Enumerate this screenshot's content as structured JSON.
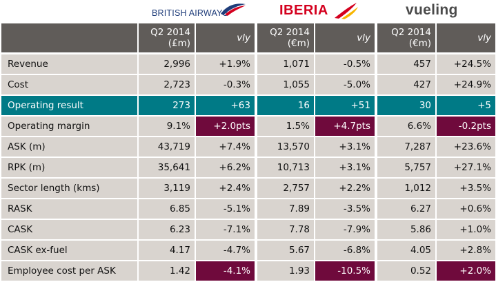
{
  "logos": {
    "ba": {
      "text": "BRITISH AIRWAYS",
      "color": "#1f3d7a",
      "accent": "#d4001e"
    },
    "iberia": {
      "text": "IBERIA",
      "color": "#d4001e",
      "accent": "#f7b500"
    },
    "vueling": {
      "text": "vueling",
      "color": "#4a4a4a",
      "accent": "#f7c600"
    }
  },
  "header": {
    "period_lines": [
      "Q2 2014",
      "(£m)",
      "(€m)"
    ],
    "airlines": [
      {
        "period": "Q2 2014",
        "unit": "(£m)",
        "vly": "vly"
      },
      {
        "period": "Q2 2014",
        "unit": "(€m)",
        "vly": "vly"
      },
      {
        "period": "Q2 2014",
        "unit": "(€m)",
        "vly": "vly"
      }
    ]
  },
  "colors": {
    "header_bg": "#605c59",
    "cell_bg": "#d9d4cf",
    "highlight_row": "#007a86",
    "highlight_cell": "#6f0a3c"
  },
  "rows": [
    {
      "label": "Revenue",
      "values": [
        "2,996",
        "+1.9%",
        "1,071",
        "-0.5%",
        "457",
        "+24.5%"
      ],
      "style": "normal"
    },
    {
      "label": "Cost",
      "values": [
        "2,723",
        "-0.3%",
        "1,055",
        "-5.0%",
        "427",
        "+24.9%"
      ],
      "style": "normal"
    },
    {
      "label": "Operating result",
      "values": [
        "273",
        "+63",
        "16",
        "+51",
        "30",
        "+5"
      ],
      "style": "teal"
    },
    {
      "label": "Operating margin",
      "values": [
        "9.1%",
        "+2.0pts",
        "1.5%",
        "+4.7pts",
        "6.6%",
        "-0.2pts"
      ],
      "style": "plum"
    },
    {
      "label": "ASK (m)",
      "values": [
        "43,719",
        "+7.4%",
        "13,570",
        "+3.1%",
        "7,287",
        "+23.6%"
      ],
      "style": "normal"
    },
    {
      "label": "RPK (m)",
      "values": [
        "35,641",
        "+6.2%",
        "10,713",
        "+3.1%",
        "5,757",
        "+27.1%"
      ],
      "style": "normal"
    },
    {
      "label": "Sector length (kms)",
      "values": [
        "3,119",
        "+2.4%",
        "2,757",
        "+2.2%",
        "1,012",
        "+3.5%"
      ],
      "style": "normal"
    },
    {
      "label": "RASK",
      "values": [
        "6.85",
        "-5.1%",
        "7.89",
        "-3.5%",
        "6.27",
        "+0.6%"
      ],
      "style": "normal"
    },
    {
      "label": "CASK",
      "values": [
        "6.23",
        "-7.1%",
        "7.78",
        "-7.9%",
        "5.86",
        "+1.0%"
      ],
      "style": "normal"
    },
    {
      "label": "CASK ex-fuel",
      "values": [
        "4.17",
        "-4.7%",
        "5.67",
        "-6.8%",
        "4.05",
        "+2.8%"
      ],
      "style": "normal"
    },
    {
      "label": "Employee cost per ASK",
      "values": [
        "1.42",
        "-4.1%",
        "1.93",
        "-10.5%",
        "0.52",
        "+2.0%"
      ],
      "style": "plum"
    }
  ]
}
